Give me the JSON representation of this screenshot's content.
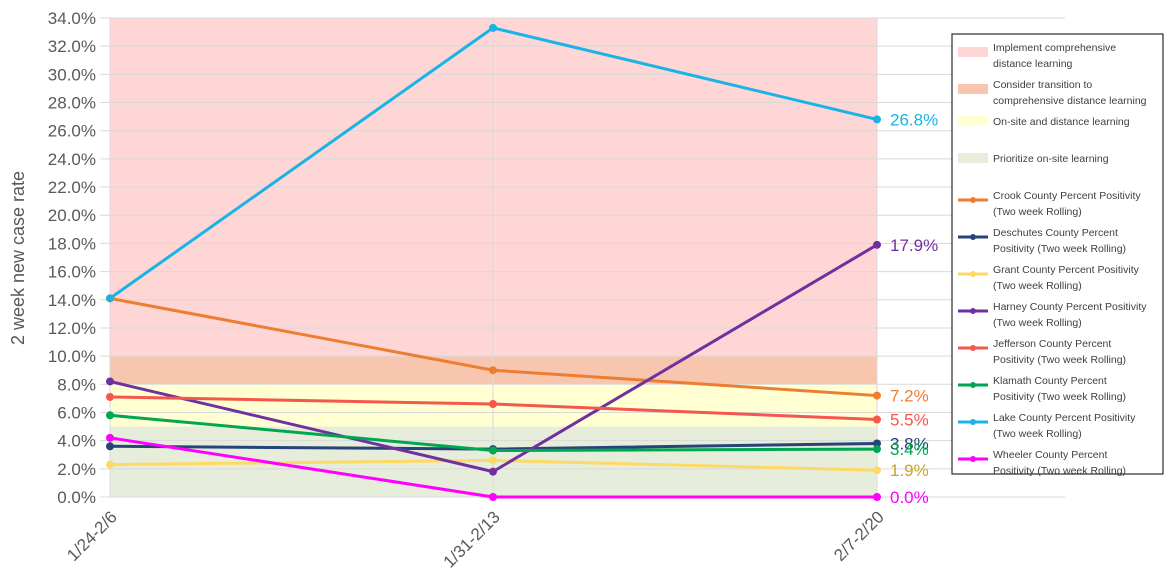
{
  "chart_data": {
    "type": "line",
    "ylabel": "2 week new case rate",
    "categories": [
      "1/24-2/6",
      "1/31-2/13",
      "2/7-2/20"
    ],
    "ylim": [
      0,
      34
    ],
    "ytick_step": 2,
    "ytick_format": "percent_1dp",
    "grid": true,
    "legend_position": "right",
    "bands": [
      {
        "name": "Implement comprehensive distance learning",
        "from": 10,
        "to": 34,
        "color": "#ffd6d6"
      },
      {
        "name": "Consider transition to comprehensive distance learning",
        "from": 8,
        "to": 10,
        "color": "#f8c6ae"
      },
      {
        "name": "On-site and distance learning",
        "from": 5,
        "to": 8,
        "color": "#ffffd2"
      },
      {
        "name": "Prioritize on-site learning",
        "from": 0,
        "to": 5,
        "color": "#e6eedb"
      }
    ],
    "series": [
      {
        "name": "Crook County Percent Positivity (Two week Rolling)",
        "color": "#ed7d31",
        "values": [
          14.1,
          9.0,
          7.2
        ],
        "end_label": "7.2%",
        "label_color": "#ed7d31"
      },
      {
        "name": "Deschutes County Percent Positivity (Two week Rolling)",
        "color": "#264478",
        "values": [
          3.6,
          3.4,
          3.8
        ],
        "end_label": "3.8%",
        "label_color": "#264478"
      },
      {
        "name": "Grant County Percent Positivity (Two week Rolling)",
        "color": "#ffd966",
        "values": [
          2.3,
          2.6,
          1.9
        ],
        "end_label": "1.9%",
        "label_color": "#c9a227"
      },
      {
        "name": "Harney County Percent Positivity (Two week Rolling)",
        "color": "#7030a0",
        "values": [
          8.2,
          1.8,
          17.9
        ],
        "end_label": "17.9%",
        "label_color": "#7030a0"
      },
      {
        "name": "Jefferson County Percent Positivity (Two week Rolling)",
        "color": "#f4574b",
        "values": [
          7.1,
          6.6,
          5.5
        ],
        "end_label": "5.5%",
        "label_color": "#f4574b"
      },
      {
        "name": "Klamath County Percent Positivity (Two week Rolling)",
        "color": "#00a651",
        "values": [
          5.8,
          3.3,
          3.4
        ],
        "end_label": "3.4%",
        "label_color": "#00a651"
      },
      {
        "name": "Lake County Percent Positivity (Two week Rolling)",
        "color": "#1ab3e6",
        "values": [
          14.1,
          33.3,
          26.8
        ],
        "end_label": "26.8%",
        "label_color": "#1ab3e6"
      },
      {
        "name": "Wheeler County Percent Positivity (Two week Rolling)",
        "color": "#ff00ff",
        "values": [
          4.2,
          0.0,
          0.0
        ],
        "end_label": "0.0%",
        "label_color": "#ff00ff"
      }
    ],
    "legend": [
      {
        "kind": "band",
        "color": "#ffd6d6",
        "lines": [
          "Implement comprehensive",
          "distance learning"
        ]
      },
      {
        "kind": "band",
        "color": "#f8c6ae",
        "lines": [
          "Consider transition to",
          "comprehensive distance learning"
        ]
      },
      {
        "kind": "band",
        "color": "#ffffd2",
        "lines": [
          "On-site and distance learning"
        ]
      },
      {
        "kind": "band",
        "color": "#e6eedb",
        "lines": [
          "Prioritize on-site learning"
        ]
      },
      {
        "kind": "line",
        "color": "#ed7d31",
        "lines": [
          "Crook County Percent Positivity",
          "(Two week Rolling)"
        ]
      },
      {
        "kind": "line",
        "color": "#264478",
        "lines": [
          "Deschutes County Percent",
          "Positivity (Two week Rolling)"
        ]
      },
      {
        "kind": "line",
        "color": "#ffd966",
        "lines": [
          "Grant County Percent Positivity",
          "(Two week Rolling)"
        ]
      },
      {
        "kind": "line",
        "color": "#7030a0",
        "lines": [
          "Harney County Percent Positivity",
          "(Two week Rolling)"
        ]
      },
      {
        "kind": "line",
        "color": "#f4574b",
        "lines": [
          "Jefferson County Percent",
          "Positivity (Two week Rolling)"
        ]
      },
      {
        "kind": "line",
        "color": "#00a651",
        "lines": [
          "Klamath County Percent",
          "Positivity (Two week Rolling)"
        ]
      },
      {
        "kind": "line",
        "color": "#1ab3e6",
        "lines": [
          "Lake County Percent Positivity",
          "(Two week Rolling)"
        ]
      },
      {
        "kind": "line",
        "color": "#ff00ff",
        "lines": [
          "Wheeler County Percent",
          "Positivity (Two week Rolling)"
        ]
      }
    ]
  }
}
